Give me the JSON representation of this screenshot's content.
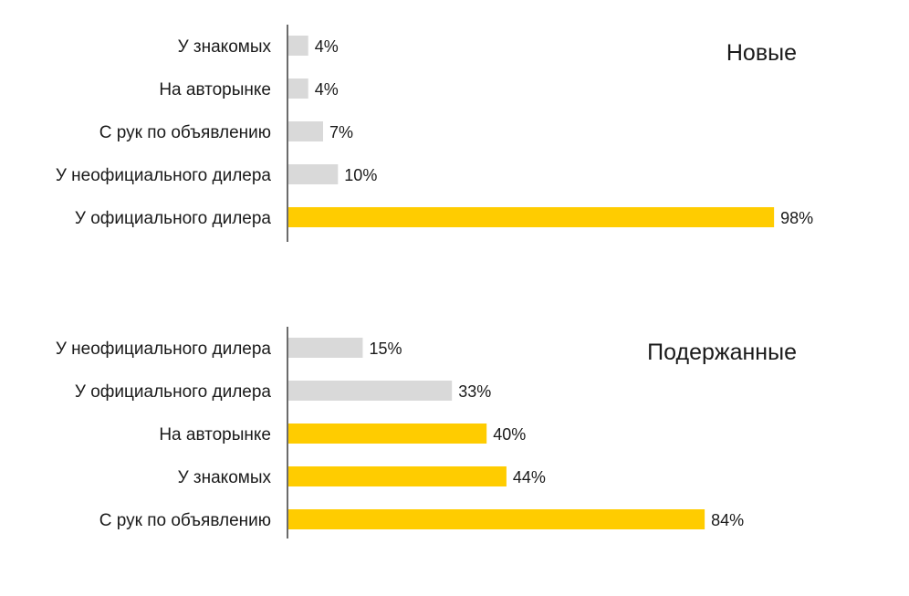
{
  "colors": {
    "highlight": "#FFCC00",
    "neutral": "#D9D9D9",
    "axis": "#3A3A3A",
    "text": "#1A1A1A"
  },
  "chart_data": [
    {
      "type": "bar",
      "orientation": "horizontal",
      "title": "Новые",
      "categories": [
        "У знакомых",
        "На авторынке",
        "С рук по объявлению",
        "У неофициального дилера",
        "У официального дилера"
      ],
      "values": [
        4,
        4,
        7,
        10,
        98
      ],
      "value_labels": [
        "4%",
        "4%",
        "7%",
        "10%",
        "98%"
      ],
      "highlighted": [
        false,
        false,
        false,
        false,
        true
      ],
      "unit": "%",
      "xlim": [
        0,
        100
      ],
      "grid": false,
      "legend": "none"
    },
    {
      "type": "bar",
      "orientation": "horizontal",
      "title": "Подержанные",
      "categories": [
        "У неофициального дилера",
        "У официального дилера",
        "На авторынке",
        "У знакомых",
        "С рук по объявлению"
      ],
      "values": [
        15,
        33,
        40,
        44,
        84
      ],
      "value_labels": [
        "15%",
        "33%",
        "40%",
        "44%",
        "84%"
      ],
      "highlighted": [
        false,
        false,
        true,
        true,
        true
      ],
      "unit": "%",
      "xlim": [
        0,
        100
      ],
      "grid": false,
      "legend": "none"
    }
  ]
}
